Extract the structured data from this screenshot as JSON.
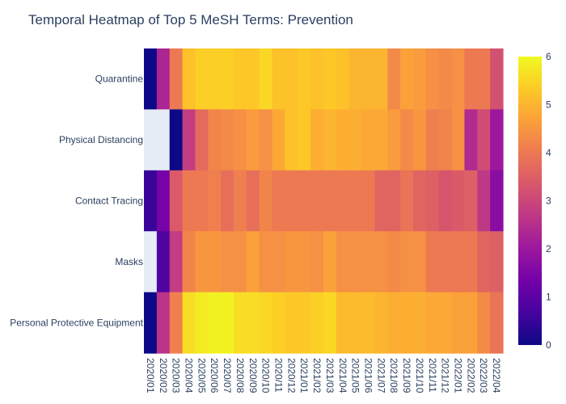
{
  "chart_data": {
    "type": "heatmap",
    "title": "Temporal Heatmap of Top 5 MeSH Terms: Prevention",
    "xlabel": "",
    "ylabel": "",
    "x": [
      "2020/01",
      "2020/02",
      "2020/03",
      "2020/04",
      "2020/05",
      "2020/06",
      "2020/07",
      "2020/08",
      "2020/09",
      "2020/10",
      "2020/11",
      "2020/12",
      "2021/01",
      "2021/02",
      "2021/03",
      "2021/04",
      "2021/05",
      "2021/06",
      "2021/07",
      "2021/08",
      "2021/09",
      "2021/10",
      "2021/11",
      "2021/12",
      "2022/01",
      "2022/02",
      "2022/03",
      "2022/04"
    ],
    "y": [
      "Quarantine",
      "Physical Distancing",
      "Contact Tracing",
      "Masks",
      "Personal Protective Equipment"
    ],
    "z": [
      [
        0.0,
        2.3,
        4.0,
        5.2,
        5.4,
        5.4,
        5.4,
        5.3,
        5.3,
        5.5,
        5.2,
        5.2,
        5.3,
        5.2,
        5.3,
        5.2,
        5.0,
        5.0,
        5.0,
        4.3,
        4.7,
        4.6,
        4.4,
        4.3,
        4.4,
        4.0,
        4.0,
        3.2
      ],
      [
        null,
        null,
        0.0,
        2.8,
        3.7,
        4.2,
        4.3,
        4.4,
        4.6,
        4.4,
        4.8,
        5.2,
        5.3,
        4.9,
        5.0,
        4.9,
        4.9,
        4.8,
        4.8,
        4.6,
        4.3,
        4.5,
        4.1,
        4.2,
        4.4,
        2.4,
        3.1,
        2.0
      ],
      [
        0.5,
        1.4,
        3.4,
        4.0,
        4.0,
        4.1,
        3.8,
        4.1,
        3.8,
        4.2,
        4.0,
        4.0,
        4.0,
        4.0,
        4.0,
        4.0,
        4.0,
        4.0,
        3.6,
        3.6,
        3.9,
        3.6,
        3.5,
        3.3,
        3.4,
        3.5,
        2.7,
        1.7
      ],
      [
        null,
        0.8,
        2.8,
        4.2,
        4.5,
        4.5,
        4.4,
        4.4,
        4.7,
        4.4,
        4.4,
        4.5,
        4.5,
        4.4,
        4.7,
        4.4,
        4.4,
        4.4,
        4.4,
        4.3,
        4.4,
        4.4,
        4.0,
        4.0,
        4.0,
        4.0,
        3.6,
        3.5
      ],
      [
        0.0,
        2.6,
        4.1,
        5.6,
        5.8,
        5.9,
        5.9,
        5.6,
        5.6,
        5.5,
        5.4,
        5.3,
        5.3,
        5.4,
        5.5,
        5.1,
        5.1,
        5.1,
        5.0,
        4.9,
        4.9,
        4.9,
        4.8,
        4.8,
        4.7,
        4.7,
        4.3,
        3.9
      ]
    ],
    "zmin": 0,
    "zmax": 6,
    "colorbar": {
      "ticks": [
        0,
        1,
        2,
        3,
        4,
        5,
        6
      ]
    },
    "missing_color": "#e5ecf6",
    "colorscale": [
      "#0d0887",
      "#46039f",
      "#7201a8",
      "#9c179e",
      "#bd3786",
      "#d8576b",
      "#ed7953",
      "#fb9f3a",
      "#fdca26",
      "#f0f921"
    ]
  }
}
